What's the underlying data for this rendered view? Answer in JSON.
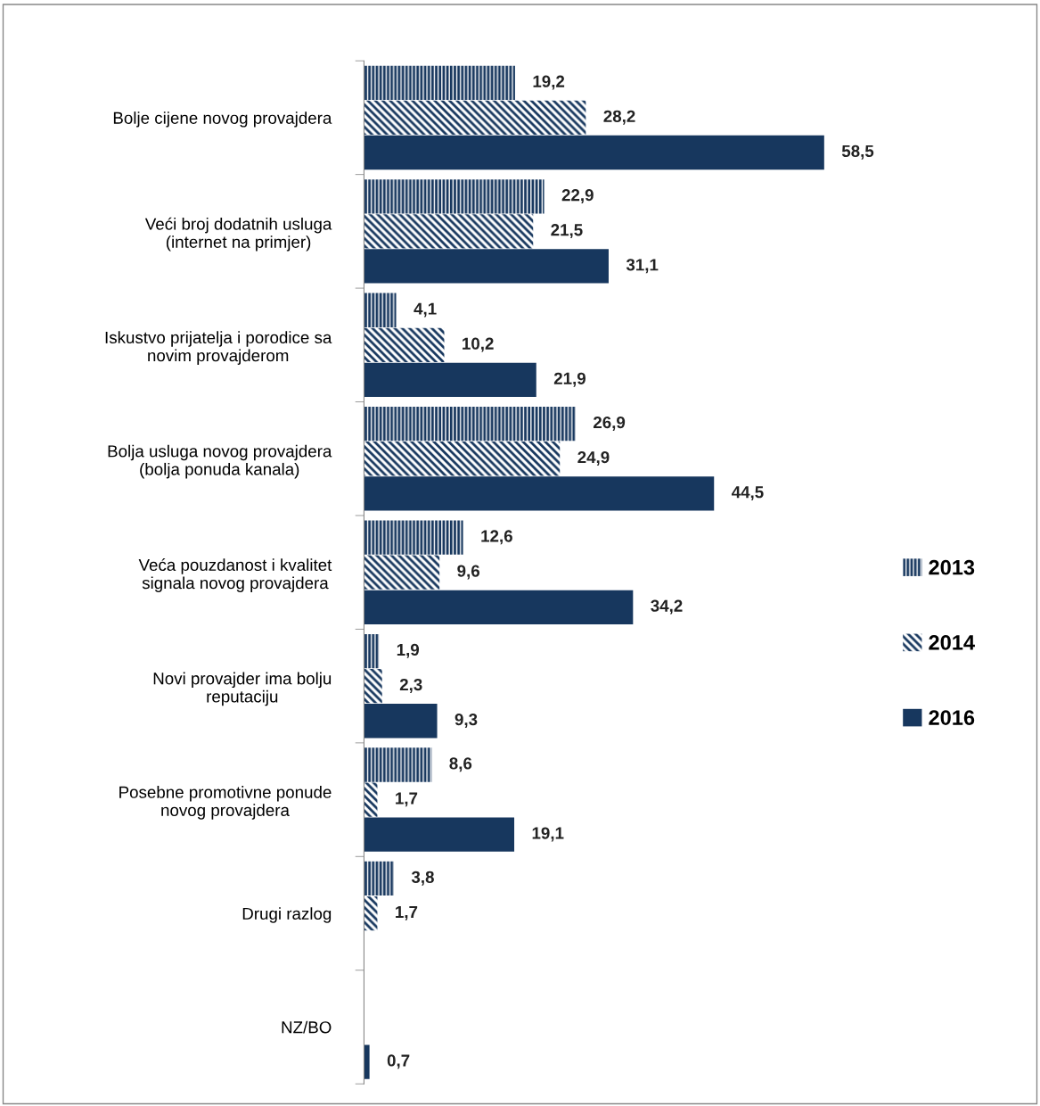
{
  "chart_data": {
    "type": "bar",
    "orientation": "horizontal",
    "categories": [
      "Bolje cijene novog provajdera",
      "Veći broj dodatnih usluga\n(internet na primjer)",
      "Iskustvo prijatelja i porodice sa\nnovim provajderom",
      "Bolja usluga novog provajdera\n(bolja ponuda kanala)",
      "Veća pouzdanost i kvalitet\nsignala novog provajdera",
      "Novi provajder ima bolju\nreputaciju",
      "Posebne promotivne ponude\nnovog provajdera",
      "Drugi razlog",
      "NZ/BO"
    ],
    "series": [
      {
        "name": "2013",
        "color": "#17375e",
        "values": [
          19.2,
          22.9,
          4.1,
          26.9,
          12.6,
          1.9,
          8.6,
          3.8,
          null
        ],
        "value_labels": [
          "19,2",
          "22,9",
          "4,1",
          "26,9",
          "12,6",
          "1,9",
          "8,6",
          "3,8",
          null
        ]
      },
      {
        "name": "2014",
        "color": "#17375e",
        "values": [
          28.2,
          21.5,
          10.2,
          24.9,
          9.6,
          2.3,
          1.7,
          1.7,
          null
        ],
        "value_labels": [
          "28,2",
          "21,5",
          "10,2",
          "24,9",
          "9,6",
          "2,3",
          "1,7",
          "1,7",
          null
        ]
      },
      {
        "name": "2016",
        "color": "#17375e",
        "values": [
          58.5,
          31.1,
          21.9,
          44.5,
          34.2,
          9.3,
          19.1,
          null,
          0.7
        ],
        "value_labels": [
          "58,5",
          "31,1",
          "21,9",
          "44,5",
          "34,2",
          "9,3",
          "19,1",
          null,
          "0,7"
        ]
      }
    ],
    "legend": "right",
    "grid": false
  }
}
